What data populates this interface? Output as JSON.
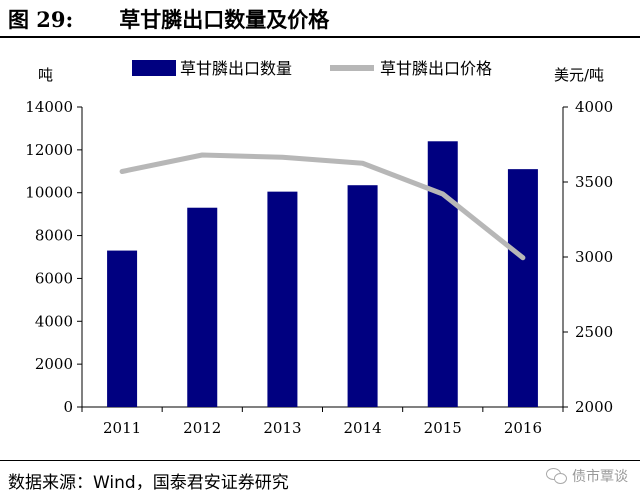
{
  "figure": {
    "number": "图 29:",
    "title": "草甘膦出口数量及价格",
    "source": "数据来源：Wind，国泰君安证券研究",
    "watermark": "债市覃谈",
    "watermark_icon": "wechat-icon"
  },
  "chart_data": {
    "type": "bar",
    "categories": [
      "2011",
      "2012",
      "2013",
      "2014",
      "2015",
      "2016"
    ],
    "series": [
      {
        "name": "草甘膦出口数量",
        "type": "bar",
        "axis": "left",
        "color": "#000080",
        "values": [
          7300,
          9300,
          10050,
          10350,
          12400,
          11100
        ]
      },
      {
        "name": "草甘膦出口价格",
        "type": "line",
        "axis": "right",
        "color": "#b7b7b7",
        "values": [
          3570,
          3680,
          3665,
          3625,
          3420,
          2995
        ]
      }
    ],
    "left_axis": {
      "unit": "吨",
      "ylim": [
        0,
        14000
      ],
      "ticks": [
        "0",
        "2000",
        "4000",
        "6000",
        "8000",
        "10000",
        "12000",
        "14000"
      ]
    },
    "right_axis": {
      "unit": "美元/吨",
      "ylim": [
        2000,
        4000
      ],
      "ticks": [
        "2000",
        "2500",
        "3000",
        "3500",
        "4000"
      ]
    },
    "legend_position": "top",
    "grid": false
  }
}
